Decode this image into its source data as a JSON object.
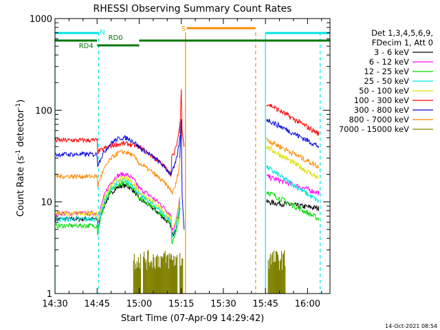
{
  "chart_data": {
    "type": "line",
    "title": "RHESSI Observing Summary Count Rates",
    "xlabel": "Start Time (07-Apr-09 14:29:42)",
    "ylabel_main": "Count Rate (s",
    "ylabel_sup1": "-1",
    "ylabel_mid": " detector",
    "ylabel_sup2": "-1",
    "ylabel_end": ")",
    "timestamp": "14-Oct-2021 08:54",
    "x_range_minutes": [
      0,
      98
    ],
    "y_scale": "log",
    "y_range": [
      1,
      1000
    ],
    "x_ticks": [
      {
        "m": 0,
        "label": "14:30"
      },
      {
        "m": 15,
        "label": "14:45"
      },
      {
        "m": 30,
        "label": "15:00"
      },
      {
        "m": 45,
        "label": "15:15"
      },
      {
        "m": 60,
        "label": "15:30"
      },
      {
        "m": 75,
        "label": "15:45"
      },
      {
        "m": 90,
        "label": "16:00"
      }
    ],
    "y_ticks": [
      {
        "v": 1,
        "label": "1"
      },
      {
        "v": 10,
        "label": "10"
      },
      {
        "v": 100,
        "label": "100"
      },
      {
        "v": 1000,
        "label": "1000"
      }
    ],
    "legend": {
      "header1": "Det 1,3,4,5,6,9,",
      "header2": "FDecim 1, Att 0",
      "placement": "right"
    },
    "series": [
      {
        "name": "3 - 6 keV",
        "color": "#000000",
        "seg1": [
          6.5,
          15
        ],
        "seg2": [
          10,
          8.5
        ]
      },
      {
        "name": "6 - 12 keV",
        "color": "#ff00ff",
        "seg1": [
          7.5,
          20
        ],
        "seg2": [
          19,
          12.5
        ]
      },
      {
        "name": "12 - 25 keV",
        "color": "#00dd00",
        "seg1": [
          5.5,
          16
        ],
        "seg2": [
          13,
          6.5
        ]
      },
      {
        "name": "25 - 50 keV",
        "color": "#00e5e5",
        "seg1": [
          6.5,
          17
        ],
        "seg2": [
          24,
          10
        ]
      },
      {
        "name": "50 - 100 keV",
        "color": "#dddd00",
        "seg1": [
          7.5,
          18
        ],
        "seg2": [
          40,
          18
        ]
      },
      {
        "name": "100 - 300 keV",
        "color": "#ff0000",
        "seg1": [
          47,
          43
        ],
        "seg2": [
          120,
          55
        ]
      },
      {
        "name": "300 - 800 keV",
        "color": "#0000dd",
        "seg1": [
          33,
          50
        ],
        "seg2": [
          80,
          40
        ]
      },
      {
        "name": "800 - 7000 keV",
        "color": "#ff8800",
        "seg1": [
          19,
          35
        ],
        "seg2": [
          48,
          24
        ]
      },
      {
        "name": "7000 - 15000 keV",
        "color": "#808000",
        "seg1": [
          1,
          1
        ],
        "seg2": [
          1,
          1
        ]
      }
    ],
    "annotations": [
      {
        "label": "N",
        "color": "#00e5e5",
        "row": "top",
        "m0": 0,
        "m1": 15.5
      },
      {
        "label": "RD0",
        "color": "#007700",
        "row": "mid",
        "m0": 0,
        "m1": 98
      },
      {
        "label": "RD4",
        "color": "#007700",
        "row": "low",
        "m0": 15,
        "m1": 30
      },
      {
        "label": "S",
        "color": "#ff8800",
        "row": "top",
        "m0": 46.5,
        "m1": 71.5
      }
    ],
    "pileup_time_minutes": 45
  }
}
